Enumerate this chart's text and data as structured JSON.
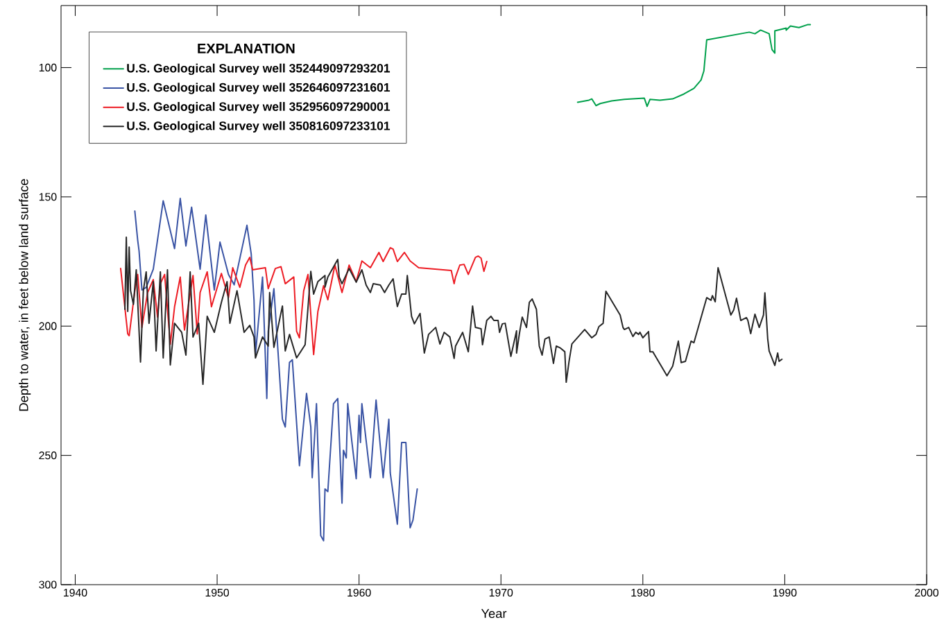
{
  "chart_data": {
    "type": "line",
    "xlabel": "Year",
    "ylabel": "Depth to water, in feet below land surface",
    "legend_title": "EXPLANATION",
    "legend": "top left",
    "xlim": [
      1939,
      2000
    ],
    "ylim": [
      300,
      76
    ],
    "xticks": [
      1940,
      1950,
      1960,
      1970,
      1980,
      1990,
      2000
    ],
    "yticks": [
      100,
      150,
      200,
      250,
      300
    ],
    "series": [
      {
        "name": "U.S. Geological Survey well 352449097293201",
        "color": "#00a04b",
        "x": [
          1975.4,
          1976.2,
          1976.4,
          1976.7,
          1977.0,
          1977.8,
          1978.7,
          1980.1,
          1980.3,
          1980.5,
          1981.2,
          1982.1,
          1982.9,
          1983.6,
          1984.1,
          1984.3,
          1984.5,
          1987.5,
          1987.9,
          1988.3,
          1988.9,
          1989.1,
          1989.3,
          1989.3,
          1990.1,
          1990.1,
          1990.4,
          1991.0,
          1991.6,
          1991.8
        ],
        "values": [
          113.4,
          112.6,
          112.1,
          114.7,
          113.9,
          112.9,
          112.3,
          111.8,
          115.0,
          112.3,
          112.6,
          112.1,
          110.2,
          108.0,
          104.8,
          101.3,
          89.3,
          86.3,
          86.9,
          85.5,
          86.9,
          93.0,
          94.4,
          85.8,
          84.7,
          85.5,
          83.9,
          84.5,
          83.4,
          83.4
        ]
      },
      {
        "name": "U.S. Geological Survey well 352646097231601",
        "color": "#3953a4",
        "x": [
          1944.2,
          1944.4,
          1944.5,
          1944.7,
          1945.0,
          1945.5,
          1946.2,
          1947.0,
          1947.4,
          1947.8,
          1948.2,
          1948.8,
          1949.2,
          1949.8,
          1950.2,
          1950.8,
          1951.2,
          1952.1,
          1952.4,
          1952.6,
          1952.7,
          1953.2,
          1953.5,
          1953.6,
          1954.0,
          1954.6,
          1954.8,
          1955.1,
          1955.3,
          1955.8,
          1956.3,
          1956.6,
          1956.7,
          1957.0,
          1957.3,
          1957.5,
          1957.6,
          1957.8,
          1958.2,
          1958.5,
          1958.8,
          1958.9,
          1959.1,
          1959.2,
          1959.5,
          1959.8,
          1960.0,
          1960.1,
          1960.2,
          1960.8,
          1961.2,
          1961.7,
          1962.1,
          1962.2,
          1962.7,
          1963.0,
          1963.3,
          1963.6,
          1963.8,
          1964.1
        ],
        "values": [
          155.5,
          166.7,
          171,
          186,
          185,
          178,
          151.5,
          170,
          150.6,
          169,
          154,
          178,
          157,
          186,
          167.5,
          180,
          184,
          161,
          172,
          190,
          211,
          181,
          228,
          202,
          185.5,
          236,
          239,
          214,
          213,
          254,
          226,
          239,
          258.6,
          230,
          281,
          283,
          263,
          264,
          230,
          228,
          268.5,
          248,
          251,
          230,
          245,
          259,
          234.5,
          245,
          230,
          258.6,
          228.6,
          258.6,
          236,
          256.8,
          276.6,
          245,
          245,
          278,
          275,
          263
        ]
      },
      {
        "name": "U.S. Geological Survey well 352956097290001",
        "color": "#ed1c24",
        "x": [
          1943.2,
          1943.7,
          1943.8,
          1944.2,
          1944.4,
          1944.7,
          1945.1,
          1945.5,
          1945.8,
          1946.0,
          1946.3,
          1946.7,
          1947.0,
          1947.4,
          1947.7,
          1948.3,
          1948.6,
          1948.8,
          1949.3,
          1949.6,
          1950.3,
          1950.8,
          1951.1,
          1951.6,
          1952.0,
          1952.3,
          1952.5,
          1953.4,
          1953.6,
          1954.1,
          1954.5,
          1954.8,
          1955.4,
          1955.6,
          1955.8,
          1956.1,
          1956.4,
          1956.8,
          1957.1,
          1957.5,
          1957.8,
          1958.3,
          1958.8,
          1959.3,
          1959.8,
          1960.2,
          1960.8,
          1961.4,
          1961.7,
          1962.2,
          1962.4,
          1962.7,
          1963.2,
          1963.6,
          1964.2,
          1966.5,
          1966.7,
          1966.8,
          1967.1,
          1967.4,
          1967.7,
          1968.2,
          1968.4,
          1968.6,
          1968.8,
          1969.0
        ],
        "values": [
          177.7,
          203,
          203.7,
          186.3,
          180,
          200.5,
          187,
          182,
          196.5,
          183.6,
          180,
          207,
          192.5,
          181,
          201.5,
          180.4,
          203,
          187,
          179,
          192.5,
          179.6,
          189,
          177.4,
          185,
          176.4,
          173.4,
          178.2,
          177.4,
          185.5,
          177.7,
          177,
          183.6,
          181,
          202,
          204.5,
          186.3,
          180,
          211,
          194.3,
          184.4,
          189.8,
          176.4,
          187,
          176.4,
          182.8,
          174.8,
          177.4,
          171.5,
          175,
          169.7,
          170.2,
          175,
          171.5,
          174.8,
          177.4,
          178.5,
          183.6,
          181,
          176.4,
          176.1,
          180,
          173.4,
          172.9,
          173.7,
          178.8,
          175
        ]
      },
      {
        "name": "U.S. Geological Survey well 350816097233101",
        "color": "#262626",
        "x": [
          1943.5,
          1943.6,
          1943.7,
          1943.8,
          1943.9,
          1944.1,
          1944.3,
          1944.6,
          1944.8,
          1945.0,
          1945.2,
          1945.5,
          1945.7,
          1946.0,
          1946.2,
          1946.5,
          1946.7,
          1947.0,
          1947.5,
          1947.8,
          1948.1,
          1948.3,
          1948.7,
          1949.0,
          1949.3,
          1949.8,
          1950.3,
          1950.7,
          1950.9,
          1951.4,
          1951.9,
          1952.3,
          1952.6,
          1952.7,
          1953.2,
          1953.6,
          1953.7,
          1954.0,
          1954.6,
          1954.8,
          1955.1,
          1955.6,
          1956.2,
          1956.6,
          1956.8,
          1957.1,
          1957.6,
          1957.6,
          1957.8,
          1958.5,
          1958.6,
          1958.8,
          1959.3,
          1959.8,
          1960.2,
          1960.5,
          1960.8,
          1961.0,
          1961.5,
          1961.8,
          1962.1,
          1962.4,
          1962.7,
          1963.0,
          1963.3,
          1963.4,
          1963.7,
          1963.9,
          1964.3,
          1964.6,
          1964.9,
          1965.4,
          1965.7,
          1966.0,
          1966.4,
          1966.7,
          1966.8,
          1967.3,
          1967.7,
          1968.0,
          1968.2,
          1968.6,
          1968.7,
          1969.0,
          1969.3,
          1969.5,
          1969.8,
          1969.9,
          1970.1,
          1970.3,
          1970.7,
          1971.1,
          1971.1,
          1971.3,
          1971.5,
          1971.8,
          1972.0,
          1972.2,
          1972.5,
          1972.7,
          1972.9,
          1973.1,
          1973.4,
          1973.7,
          1973.9,
          1974.2,
          1974.5,
          1974.6,
          1974.8,
          1975.0,
          1975.9,
          1976.4,
          1976.7,
          1976.9,
          1977.2,
          1977.4,
          1978.4,
          1978.6,
          1978.7,
          1979.0,
          1979.3,
          1979.5,
          1979.7,
          1979.8,
          1980.0,
          1980.4,
          1980.5,
          1980.7,
          1981.7,
          1982.1,
          1982.5,
          1982.7,
          1983.0,
          1983.4,
          1983.6,
          1984.5,
          1984.8,
          1984.9,
          1985.1,
          1985.3,
          1986.2,
          1986.4,
          1986.6,
          1986.9,
          1987.3,
          1987.4,
          1987.6,
          1987.9,
          1988.2,
          1988.5,
          1988.6,
          1988.8,
          1988.9,
          1989.3,
          1989.5,
          1989.6,
          1989.8
        ],
        "values": [
          193.5,
          165.6,
          194.3,
          169.4,
          186.3,
          191.6,
          178.2,
          213.9,
          186.3,
          179,
          198.9,
          182.8,
          209.6,
          179,
          212.3,
          178.2,
          215,
          198.9,
          202.4,
          211.2,
          179,
          204.2,
          198.9,
          222.5,
          196.2,
          202.4,
          190.8,
          182.8,
          198.9,
          186.3,
          202.4,
          199.7,
          204.2,
          212.3,
          204.2,
          207.7,
          187,
          208.2,
          192.2,
          209.6,
          203.2,
          212.3,
          207.2,
          178.8,
          187.6,
          182.8,
          180.4,
          184.9,
          181,
          174.2,
          181,
          183.6,
          177.7,
          183,
          178.2,
          184.1,
          187,
          183.6,
          184.1,
          187,
          184.1,
          181.7,
          192.4,
          187.6,
          187.6,
          180.4,
          196.2,
          199.1,
          195.1,
          210.4,
          203.2,
          200.5,
          206.9,
          202.4,
          204.2,
          212.5,
          207.7,
          202.4,
          209.9,
          192.2,
          200.5,
          201,
          207.2,
          197.8,
          196.2,
          197.8,
          197.8,
          202.4,
          199.1,
          198.9,
          211.7,
          201.8,
          210.4,
          202.9,
          196.5,
          200.5,
          190.8,
          189.5,
          193.5,
          207.7,
          211.2,
          205,
          204.2,
          214.4,
          207.7,
          208.5,
          209.9,
          221.7,
          213.6,
          206.9,
          201.3,
          204.5,
          203.2,
          200.2,
          198.9,
          186.5,
          195.7,
          200.5,
          201.3,
          200.5,
          204,
          202.4,
          203.2,
          202.4,
          204.5,
          202.1,
          209.9,
          209.9,
          219.2,
          215.5,
          205.8,
          214.1,
          213.6,
          205.8,
          206.4,
          189,
          190,
          188.2,
          190.6,
          177.4,
          195.7,
          193.8,
          189.2,
          197.8,
          196.7,
          197.8,
          202.9,
          195.4,
          200.5,
          195.7,
          187.1,
          205,
          209.6,
          215.2,
          210.4,
          213.6,
          212.8
        ]
      }
    ]
  }
}
